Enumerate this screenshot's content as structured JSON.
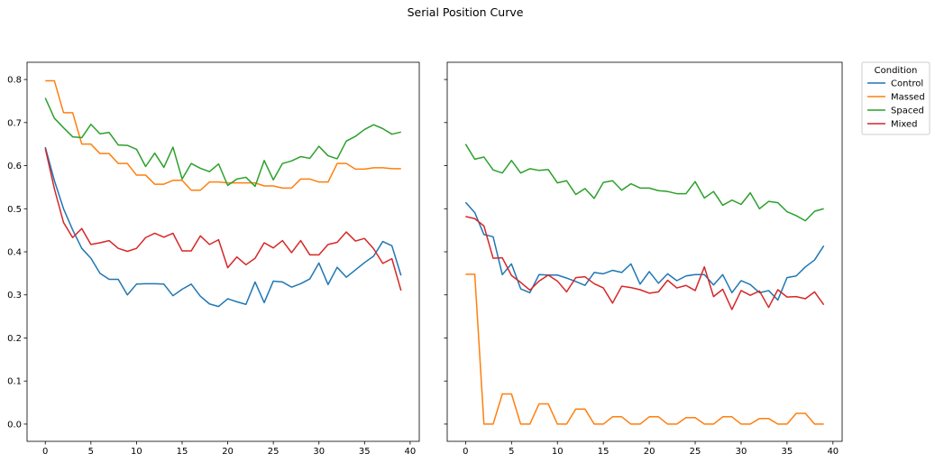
{
  "figure": {
    "title": "Serial Position Curve"
  },
  "legend": {
    "title": "Condition",
    "placement": "outside-right-top"
  },
  "chart_data": [
    {
      "type": "line",
      "panel": "left",
      "title": "",
      "xlabel": "",
      "ylabel": "",
      "xlim": [
        -2,
        41
      ],
      "ylim": [
        -0.04,
        0.84
      ],
      "xticks": [
        0,
        5,
        10,
        15,
        20,
        25,
        30,
        35,
        40
      ],
      "yticks": [
        0.0,
        0.1,
        0.2,
        0.3,
        0.4,
        0.5,
        0.6,
        0.7,
        0.8
      ],
      "ytick_labels": [
        "0.0",
        "0.1",
        "0.2",
        "0.3",
        "0.4",
        "0.5",
        "0.6",
        "0.7",
        "0.8"
      ],
      "grid": false,
      "x": [
        0,
        1,
        2,
        3,
        4,
        5,
        6,
        7,
        8,
        9,
        10,
        11,
        12,
        13,
        14,
        15,
        16,
        17,
        18,
        19,
        20,
        21,
        22,
        23,
        24,
        25,
        26,
        27,
        28,
        29,
        30,
        31,
        32,
        33,
        34,
        35,
        36,
        37,
        38,
        39
      ],
      "series": [
        {
          "name": "Control",
          "color": "#1f77b4",
          "values": [
            0.643,
            0.565,
            0.5,
            0.451,
            0.408,
            0.385,
            0.35,
            0.336,
            0.336,
            0.3,
            0.325,
            0.326,
            0.326,
            0.325,
            0.298,
            0.313,
            0.325,
            0.297,
            0.279,
            0.273,
            0.291,
            0.284,
            0.278,
            0.33,
            0.282,
            0.332,
            0.33,
            0.318,
            0.326,
            0.337,
            0.374,
            0.324,
            0.364,
            0.341,
            0.358,
            0.375,
            0.39,
            0.424,
            0.414,
            0.345
          ]
        },
        {
          "name": "Massed",
          "color": "#ff7f0e",
          "values": [
            0.797,
            0.797,
            0.723,
            0.723,
            0.65,
            0.65,
            0.628,
            0.628,
            0.605,
            0.605,
            0.578,
            0.578,
            0.557,
            0.557,
            0.566,
            0.566,
            0.543,
            0.543,
            0.562,
            0.562,
            0.56,
            0.56,
            0.56,
            0.56,
            0.553,
            0.553,
            0.548,
            0.548,
            0.569,
            0.569,
            0.562,
            0.562,
            0.605,
            0.605,
            0.592,
            0.592,
            0.595,
            0.595,
            0.593,
            0.593
          ]
        },
        {
          "name": "Spaced",
          "color": "#2ca02c",
          "values": [
            0.757,
            0.71,
            0.688,
            0.667,
            0.665,
            0.696,
            0.674,
            0.677,
            0.648,
            0.647,
            0.638,
            0.598,
            0.629,
            0.596,
            0.643,
            0.569,
            0.605,
            0.594,
            0.586,
            0.604,
            0.554,
            0.569,
            0.573,
            0.552,
            0.612,
            0.567,
            0.605,
            0.611,
            0.621,
            0.617,
            0.645,
            0.623,
            0.616,
            0.657,
            0.668,
            0.684,
            0.695,
            0.686,
            0.673,
            0.678
          ]
        },
        {
          "name": "Mixed",
          "color": "#d62728",
          "values": [
            0.64,
            0.546,
            0.468,
            0.433,
            0.454,
            0.417,
            0.421,
            0.426,
            0.408,
            0.401,
            0.408,
            0.433,
            0.443,
            0.434,
            0.443,
            0.402,
            0.402,
            0.437,
            0.417,
            0.428,
            0.363,
            0.388,
            0.37,
            0.385,
            0.421,
            0.409,
            0.426,
            0.398,
            0.426,
            0.393,
            0.393,
            0.417,
            0.422,
            0.446,
            0.425,
            0.431,
            0.407,
            0.373,
            0.384,
            0.31
          ]
        }
      ]
    },
    {
      "type": "line",
      "panel": "right",
      "title": "",
      "xlabel": "",
      "ylabel": "",
      "xlim": [
        -2,
        41
      ],
      "ylim": [
        -0.04,
        0.84
      ],
      "xticks": [
        0,
        5,
        10,
        15,
        20,
        25,
        30,
        35,
        40
      ],
      "shared_y": true,
      "grid": false,
      "x": [
        0,
        1,
        2,
        3,
        4,
        5,
        6,
        7,
        8,
        9,
        10,
        11,
        12,
        13,
        14,
        15,
        16,
        17,
        18,
        19,
        20,
        21,
        22,
        23,
        24,
        25,
        26,
        27,
        28,
        29,
        30,
        31,
        32,
        33,
        34,
        35,
        36,
        37,
        38,
        39
      ],
      "series": [
        {
          "name": "Control",
          "color": "#1f77b4",
          "values": [
            0.515,
            0.491,
            0.44,
            0.435,
            0.347,
            0.372,
            0.314,
            0.305,
            0.347,
            0.346,
            0.346,
            0.339,
            0.331,
            0.322,
            0.352,
            0.349,
            0.357,
            0.352,
            0.372,
            0.325,
            0.354,
            0.327,
            0.349,
            0.333,
            0.344,
            0.347,
            0.347,
            0.323,
            0.347,
            0.305,
            0.333,
            0.324,
            0.305,
            0.31,
            0.288,
            0.34,
            0.344,
            0.365,
            0.381,
            0.414
          ]
        },
        {
          "name": "Massed",
          "color": "#ff7f0e",
          "values": [
            0.348,
            0.348,
            0.0,
            0.0,
            0.07,
            0.07,
            0.0,
            0.0,
            0.047,
            0.047,
            0.0,
            0.0,
            0.035,
            0.035,
            0.0,
            0.0,
            0.017,
            0.017,
            0.0,
            0.0,
            0.017,
            0.017,
            0.0,
            0.0,
            0.015,
            0.015,
            0.0,
            0.0,
            0.017,
            0.017,
            0.0,
            0.0,
            0.013,
            0.013,
            0.0,
            0.0,
            0.025,
            0.025,
            0.0,
            0.0
          ]
        },
        {
          "name": "Spaced",
          "color": "#2ca02c",
          "values": [
            0.65,
            0.615,
            0.62,
            0.59,
            0.583,
            0.612,
            0.583,
            0.593,
            0.589,
            0.591,
            0.56,
            0.565,
            0.533,
            0.547,
            0.524,
            0.561,
            0.565,
            0.543,
            0.558,
            0.548,
            0.548,
            0.542,
            0.54,
            0.535,
            0.535,
            0.563,
            0.525,
            0.54,
            0.508,
            0.52,
            0.51,
            0.537,
            0.5,
            0.517,
            0.514,
            0.493,
            0.484,
            0.472,
            0.494,
            0.5
          ]
        },
        {
          "name": "Mixed",
          "color": "#d62728",
          "values": [
            0.482,
            0.477,
            0.46,
            0.385,
            0.386,
            0.345,
            0.329,
            0.311,
            0.332,
            0.346,
            0.332,
            0.307,
            0.34,
            0.342,
            0.326,
            0.316,
            0.281,
            0.32,
            0.317,
            0.312,
            0.304,
            0.307,
            0.334,
            0.316,
            0.322,
            0.31,
            0.365,
            0.296,
            0.313,
            0.266,
            0.31,
            0.299,
            0.309,
            0.271,
            0.312,
            0.295,
            0.296,
            0.291,
            0.307,
            0.277
          ]
        }
      ]
    }
  ]
}
